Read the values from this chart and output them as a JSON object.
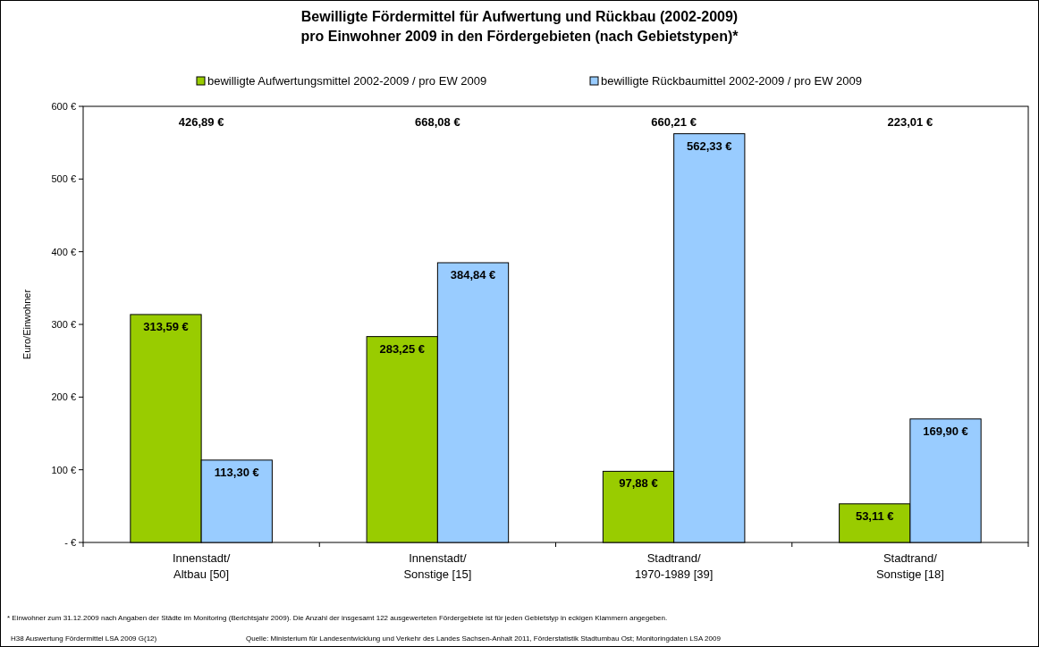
{
  "chart_data": {
    "type": "bar",
    "title": "Bewilligte Fördermittel für Aufwertung und Rückbau (2002-2009)\npro Einwohner 2009 in den Fördergebieten (nach Gebietstypen)*",
    "ylabel": "Euro/Einwohner",
    "categories": [
      "Innenstadt/\nAltbau [50]",
      "Innenstadt/\nSonstige [15]",
      "Stadtrand/\n1970-1989 [39]",
      "Stadtrand/\nSonstige [18]"
    ],
    "series": [
      {
        "name": "bewilligte Aufwertungsmittel 2002-2009 / pro EW 2009",
        "color": "#99cc00",
        "values": [
          313.59,
          283.25,
          97.88,
          53.11
        ],
        "value_labels": [
          "313,59 €",
          "283,25 €",
          "97,88 €",
          "53,11 €"
        ]
      },
      {
        "name": "bewilligte Rückbaumittel 2002-2009 / pro EW 2009",
        "color": "#99ccff",
        "values": [
          113.3,
          384.84,
          562.33,
          169.9
        ],
        "value_labels": [
          "113,30 €",
          "384,84 €",
          "562,33 €",
          "169,90 €"
        ]
      }
    ],
    "ylim": [
      0,
      600
    ],
    "yticks": [
      {
        "value": 0,
        "label": "- €"
      },
      {
        "value": 100,
        "label": "100 €"
      },
      {
        "value": 200,
        "label": "200 €"
      },
      {
        "value": 300,
        "label": "300 €"
      },
      {
        "value": 400,
        "label": "400 €"
      },
      {
        "value": 500,
        "label": "500 €"
      },
      {
        "value": 600,
        "label": "600 €"
      }
    ],
    "grid": false,
    "legend": "top",
    "annotations": [
      "* Einwohner zum 31.12.2009 nach Angaben der Städte im Monitoring (Berichtsjahr 2009). Die Anzahl der insgesamt 122 ausgewerteten Fördergebiete ist für jeden Gebietstyp in eckigen Klammern angegeben.",
      "H38 Auswertung Fördermittel LSA 2009 G(12)",
      "Quelle: Ministerium für Landesentwicklung und Verkehr des Landes Sachsen-Anhalt 2011, Förderstatistik Stadtumbau Ost; Monitoringdaten LSA 2009",
      "426,89 €",
      "668,08 €",
      "660,21 €",
      "223,01 €"
    ]
  }
}
